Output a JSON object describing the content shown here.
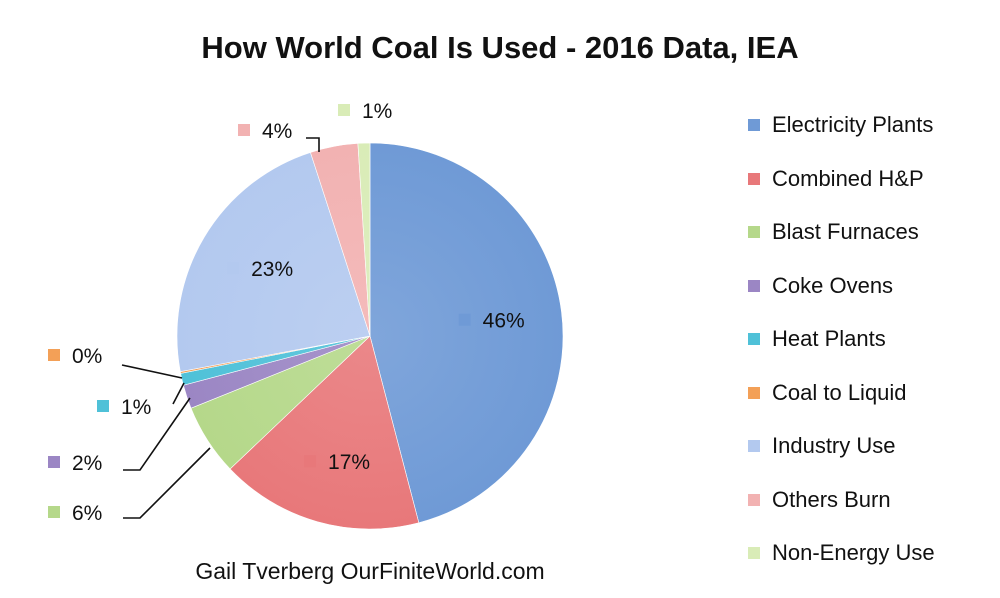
{
  "chart_data": {
    "type": "pie",
    "title": "How World Coal Is Used - 2016 Data, IEA",
    "credit": "Gail Tverberg OurFiniteWorld.com",
    "categories": [
      "Electricity Plants",
      "Combined H&P",
      "Blast Furnaces",
      "Coke Ovens",
      "Heat Plants",
      "Coal to Liquid",
      "Industry Use",
      "Others Burn",
      "Non-Energy Use"
    ],
    "values": [
      46,
      17,
      6,
      2,
      1,
      0,
      23,
      4,
      1
    ],
    "labels": [
      "46%",
      "17%",
      "6%",
      "2%",
      "1%",
      "0%",
      "23%",
      "4%",
      "1%"
    ],
    "colors": [
      "#6f9ad6",
      "#e8787a",
      "#b5d88a",
      "#9b86c4",
      "#4fc1d8",
      "#f3a057",
      "#b3c9ef",
      "#f2b2b2",
      "#d9ecb7"
    ],
    "legend_position": "right"
  }
}
